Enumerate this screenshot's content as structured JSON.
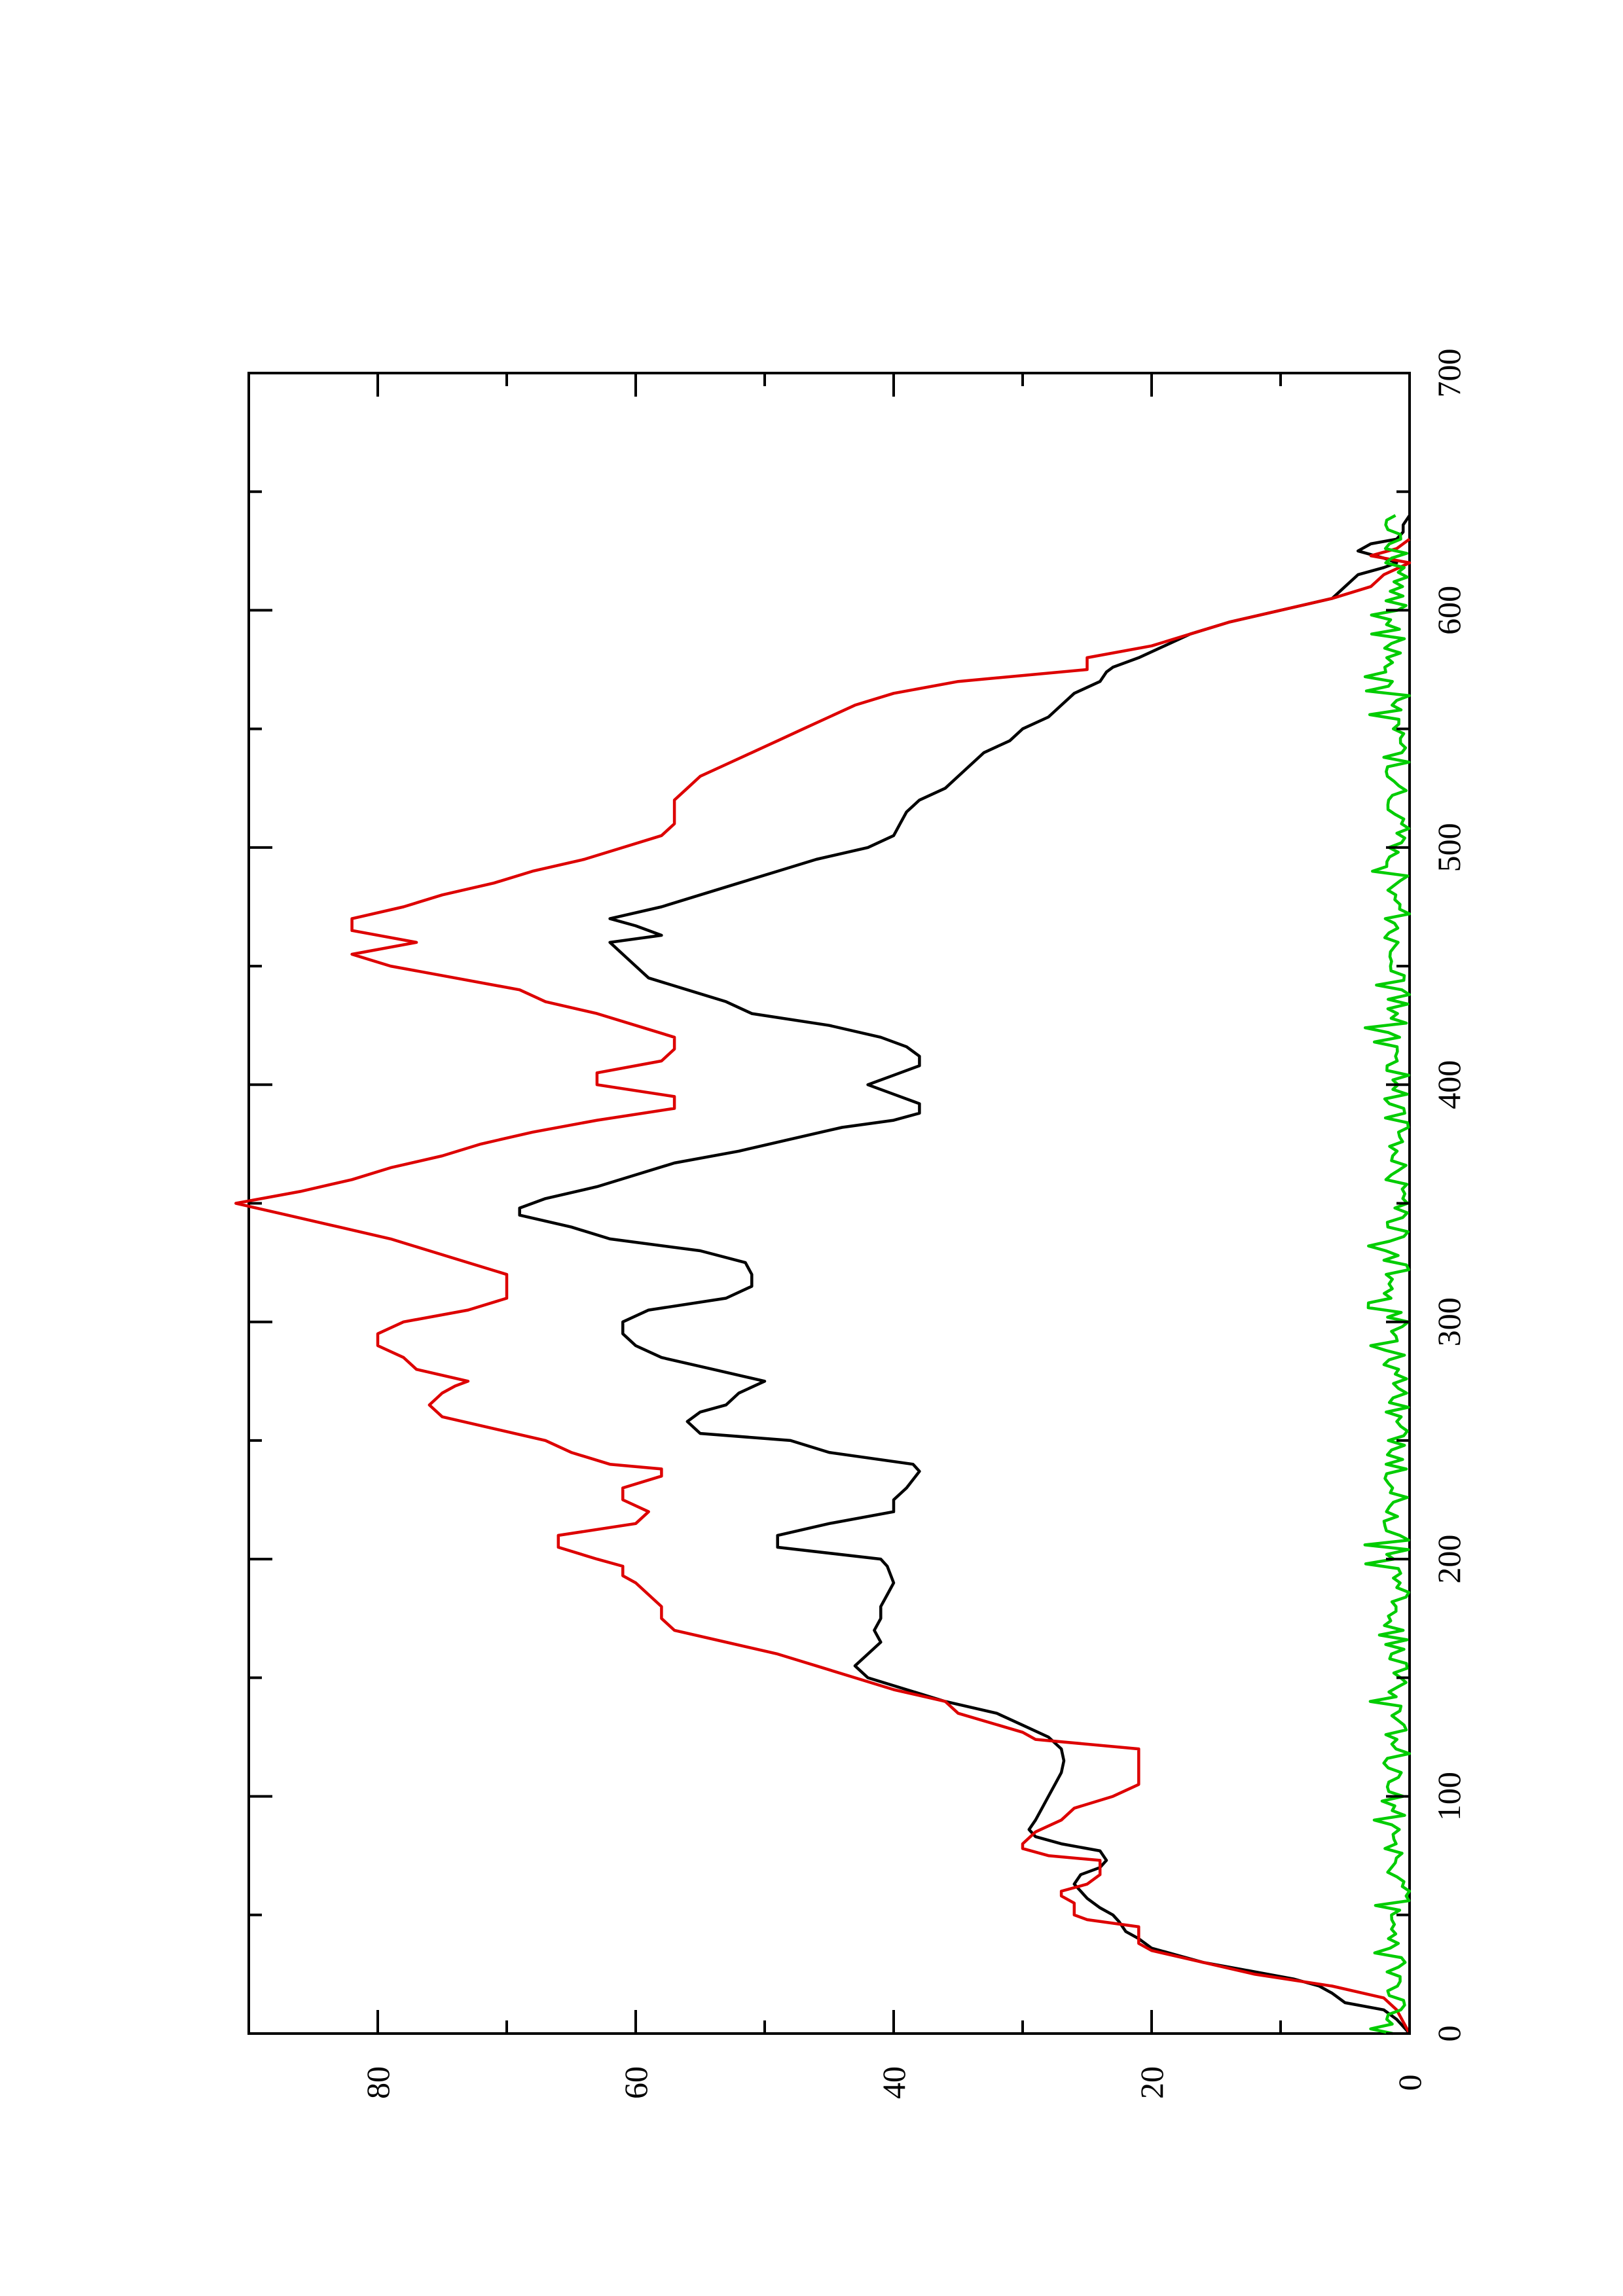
{
  "chart_data": {
    "type": "line",
    "orientation": "rotated-90-ccw",
    "title": "",
    "xlabel": "",
    "ylabel": "",
    "xlim": [
      0,
      700
    ],
    "ylim": [
      0,
      90
    ],
    "x_ticks": [
      0,
      100,
      200,
      300,
      400,
      500,
      600,
      700
    ],
    "y_ticks": [
      0,
      20,
      40,
      60,
      80
    ],
    "grid": false,
    "legend": "none",
    "series": [
      {
        "color": "#000000",
        "points": [
          [
            0,
            0
          ],
          [
            3,
            0.5
          ],
          [
            6,
            1
          ],
          [
            10,
            2
          ],
          [
            13,
            5
          ],
          [
            17,
            6
          ],
          [
            20,
            7
          ],
          [
            23,
            9
          ],
          [
            27,
            13
          ],
          [
            30,
            16
          ],
          [
            33,
            18
          ],
          [
            36,
            20
          ],
          [
            40,
            21
          ],
          [
            43,
            22
          ],
          [
            47,
            22.5
          ],
          [
            50,
            23
          ],
          [
            53,
            24
          ],
          [
            57,
            25
          ],
          [
            60,
            25.5
          ],
          [
            63,
            26
          ],
          [
            67,
            25.5
          ],
          [
            70,
            24
          ],
          [
            73,
            23.5
          ],
          [
            77,
            24
          ],
          [
            80,
            27
          ],
          [
            83,
            29
          ],
          [
            86,
            29.5
          ],
          [
            90,
            29
          ],
          [
            95,
            28.5
          ],
          [
            100,
            28
          ],
          [
            105,
            27.5
          ],
          [
            110,
            27
          ],
          [
            115,
            26.8
          ],
          [
            120,
            27
          ],
          [
            125,
            28
          ],
          [
            130,
            30
          ],
          [
            135,
            32
          ],
          [
            140,
            36
          ],
          [
            145,
            39
          ],
          [
            150,
            42
          ],
          [
            155,
            43
          ],
          [
            160,
            42
          ],
          [
            165,
            41
          ],
          [
            170,
            41.5
          ],
          [
            175,
            41
          ],
          [
            180,
            41
          ],
          [
            185,
            40.5
          ],
          [
            190,
            40
          ],
          [
            197,
            40.5
          ],
          [
            200,
            41
          ],
          [
            205,
            49
          ],
          [
            210,
            49
          ],
          [
            215,
            45
          ],
          [
            220,
            40
          ],
          [
            225,
            40
          ],
          [
            230,
            39
          ],
          [
            237,
            38
          ],
          [
            240,
            38.5
          ],
          [
            245,
            45
          ],
          [
            250,
            48
          ],
          [
            253,
            55
          ],
          [
            258,
            56
          ],
          [
            262,
            55
          ],
          [
            265,
            53
          ],
          [
            270,
            52
          ],
          [
            275,
            50
          ],
          [
            280,
            54
          ],
          [
            285,
            58
          ],
          [
            290,
            60
          ],
          [
            295,
            61
          ],
          [
            300,
            61
          ],
          [
            305,
            59
          ],
          [
            310,
            53
          ],
          [
            315,
            51
          ],
          [
            320,
            51
          ],
          [
            325,
            51.5
          ],
          [
            330,
            55
          ],
          [
            335,
            62
          ],
          [
            340,
            65
          ],
          [
            345,
            69
          ],
          [
            348,
            69
          ],
          [
            352,
            67
          ],
          [
            357,
            63
          ],
          [
            362,
            60
          ],
          [
            367,
            57
          ],
          [
            372,
            52
          ],
          [
            377,
            48
          ],
          [
            382,
            44
          ],
          [
            385,
            40
          ],
          [
            388,
            38
          ],
          [
            392,
            38
          ],
          [
            396,
            40
          ],
          [
            400,
            42
          ],
          [
            404,
            40
          ],
          [
            408,
            38
          ],
          [
            412,
            38
          ],
          [
            416,
            39
          ],
          [
            420,
            41
          ],
          [
            425,
            45
          ],
          [
            430,
            51
          ],
          [
            435,
            53
          ],
          [
            440,
            56
          ],
          [
            445,
            59
          ],
          [
            450,
            60
          ],
          [
            455,
            61
          ],
          [
            460,
            62
          ],
          [
            463,
            58
          ],
          [
            467,
            60
          ],
          [
            470,
            62
          ],
          [
            475,
            58
          ],
          [
            480,
            55
          ],
          [
            485,
            52
          ],
          [
            490,
            49
          ],
          [
            495,
            46
          ],
          [
            500,
            42
          ],
          [
            505,
            40
          ],
          [
            510,
            39.5
          ],
          [
            515,
            39
          ],
          [
            520,
            38
          ],
          [
            525,
            36
          ],
          [
            530,
            35
          ],
          [
            535,
            34
          ],
          [
            540,
            33
          ],
          [
            545,
            31
          ],
          [
            550,
            30
          ],
          [
            555,
            28
          ],
          [
            560,
            27
          ],
          [
            565,
            26
          ],
          [
            570,
            24
          ],
          [
            574,
            23.5
          ],
          [
            576,
            23
          ],
          [
            580,
            21
          ],
          [
            585,
            19
          ],
          [
            590,
            17
          ],
          [
            595,
            14
          ],
          [
            600,
            10
          ],
          [
            605,
            6
          ],
          [
            610,
            5
          ],
          [
            615,
            4
          ],
          [
            618,
            2
          ],
          [
            620,
            1
          ],
          [
            622,
            2
          ],
          [
            625,
            4
          ],
          [
            628,
            3
          ],
          [
            630,
            1
          ],
          [
            633,
            0.5
          ],
          [
            636,
            0.5
          ],
          [
            640,
            0
          ]
        ]
      },
      {
        "color": "#dd0000",
        "points": [
          [
            0,
            0
          ],
          [
            5,
            0.5
          ],
          [
            10,
            1
          ],
          [
            15,
            2
          ],
          [
            20,
            6
          ],
          [
            25,
            12
          ],
          [
            30,
            16
          ],
          [
            35,
            20
          ],
          [
            38,
            21
          ],
          [
            45,
            21
          ],
          [
            48,
            25
          ],
          [
            50,
            26
          ],
          [
            55,
            26
          ],
          [
            58,
            27
          ],
          [
            60,
            27
          ],
          [
            63,
            25
          ],
          [
            67,
            24
          ],
          [
            70,
            24
          ],
          [
            73,
            24
          ],
          [
            75,
            28
          ],
          [
            78,
            30
          ],
          [
            80,
            30
          ],
          [
            85,
            29
          ],
          [
            90,
            27
          ],
          [
            95,
            26
          ],
          [
            100,
            23
          ],
          [
            105,
            21
          ],
          [
            110,
            21
          ],
          [
            115,
            21
          ],
          [
            120,
            21
          ],
          [
            124,
            29
          ],
          [
            127,
            30
          ],
          [
            135,
            35
          ],
          [
            140,
            36
          ],
          [
            145,
            40
          ],
          [
            150,
            43
          ],
          [
            155,
            46
          ],
          [
            160,
            49
          ],
          [
            165,
            53
          ],
          [
            170,
            57
          ],
          [
            175,
            58
          ],
          [
            180,
            58
          ],
          [
            185,
            59
          ],
          [
            190,
            60
          ],
          [
            193,
            61
          ],
          [
            197,
            61
          ],
          [
            200,
            63
          ],
          [
            205,
            66
          ],
          [
            210,
            66
          ],
          [
            215,
            60
          ],
          [
            220,
            59
          ],
          [
            225,
            61
          ],
          [
            230,
            61
          ],
          [
            235,
            58
          ],
          [
            238,
            58
          ],
          [
            240,
            62
          ],
          [
            245,
            65
          ],
          [
            250,
            67
          ],
          [
            255,
            71
          ],
          [
            260,
            75
          ],
          [
            265,
            76
          ],
          [
            270,
            75
          ],
          [
            273,
            74
          ],
          [
            275,
            73
          ],
          [
            280,
            77
          ],
          [
            285,
            78
          ],
          [
            290,
            80
          ],
          [
            295,
            80
          ],
          [
            300,
            78
          ],
          [
            305,
            73
          ],
          [
            310,
            70
          ],
          [
            315,
            70
          ],
          [
            320,
            70
          ],
          [
            325,
            73
          ],
          [
            330,
            76
          ],
          [
            335,
            79
          ],
          [
            340,
            83
          ],
          [
            345,
            87
          ],
          [
            350,
            91
          ],
          [
            355,
            86
          ],
          [
            360,
            82
          ],
          [
            365,
            79
          ],
          [
            370,
            75
          ],
          [
            375,
            72
          ],
          [
            380,
            68
          ],
          [
            385,
            63
          ],
          [
            390,
            57
          ],
          [
            395,
            57
          ],
          [
            400,
            63
          ],
          [
            405,
            63
          ],
          [
            410,
            58
          ],
          [
            415,
            57
          ],
          [
            420,
            57
          ],
          [
            425,
            60
          ],
          [
            430,
            63
          ],
          [
            435,
            67
          ],
          [
            440,
            69
          ],
          [
            445,
            74
          ],
          [
            450,
            79
          ],
          [
            455,
            82
          ],
          [
            460,
            77
          ],
          [
            465,
            82
          ],
          [
            470,
            82
          ],
          [
            475,
            78
          ],
          [
            480,
            75
          ],
          [
            485,
            71
          ],
          [
            490,
            68
          ],
          [
            495,
            64
          ],
          [
            500,
            61
          ],
          [
            505,
            58
          ],
          [
            510,
            57
          ],
          [
            515,
            57
          ],
          [
            520,
            57
          ],
          [
            525,
            56
          ],
          [
            530,
            55
          ],
          [
            535,
            53
          ],
          [
            540,
            51
          ],
          [
            545,
            49
          ],
          [
            550,
            47
          ],
          [
            555,
            45
          ],
          [
            560,
            43
          ],
          [
            565,
            40
          ],
          [
            570,
            35
          ],
          [
            575,
            25
          ],
          [
            580,
            25
          ],
          [
            585,
            20
          ],
          [
            590,
            17
          ],
          [
            595,
            14
          ],
          [
            600,
            10
          ],
          [
            605,
            6
          ],
          [
            610,
            3
          ],
          [
            615,
            2
          ],
          [
            620,
            0
          ],
          [
            623,
            3
          ],
          [
            626,
            1
          ],
          [
            630,
            0
          ]
        ]
      },
      {
        "color": "#00cc00",
        "noise": true,
        "x_range": [
          0,
          640
        ],
        "step": 2,
        "typical_max": 2.0,
        "peak_max": 3.5
      }
    ]
  }
}
